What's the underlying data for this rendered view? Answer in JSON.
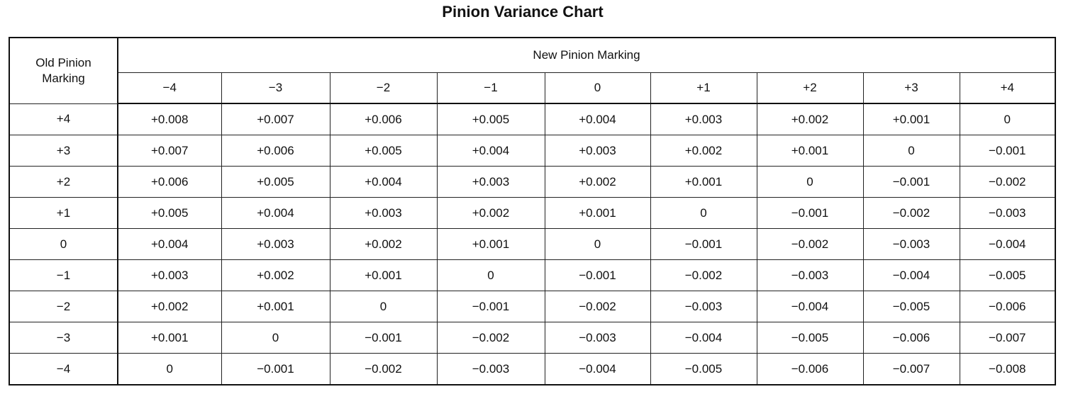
{
  "title": "Pinion Variance Chart",
  "table": {
    "header": {
      "row_label": "Old Pinion Marking",
      "group_label": "New Pinion Marking",
      "columns": [
        "−4",
        "−3",
        "−2",
        "−1",
        "0",
        "+1",
        "+2",
        "+3",
        "+4"
      ]
    },
    "rows": [
      {
        "label": "+4",
        "values": [
          "+0.008",
          "+0.007",
          "+0.006",
          "+0.005",
          "+0.004",
          "+0.003",
          "+0.002",
          "+0.001",
          "0"
        ]
      },
      {
        "label": "+3",
        "values": [
          "+0.007",
          "+0.006",
          "+0.005",
          "+0.004",
          "+0.003",
          "+0.002",
          "+0.001",
          "0",
          "−0.001"
        ]
      },
      {
        "label": "+2",
        "values": [
          "+0.006",
          "+0.005",
          "+0.004",
          "+0.003",
          "+0.002",
          "+0.001",
          "0",
          "−0.001",
          "−0.002"
        ]
      },
      {
        "label": "+1",
        "values": [
          "+0.005",
          "+0.004",
          "+0.003",
          "+0.002",
          "+0.001",
          "0",
          "−0.001",
          "−0.002",
          "−0.003"
        ]
      },
      {
        "label": "0",
        "values": [
          "+0.004",
          "+0.003",
          "+0.002",
          "+0.001",
          "0",
          "−0.001",
          "−0.002",
          "−0.003",
          "−0.004"
        ]
      },
      {
        "label": "−1",
        "values": [
          "+0.003",
          "+0.002",
          "+0.001",
          "0",
          "−0.001",
          "−0.002",
          "−0.003",
          "−0.004",
          "−0.005"
        ]
      },
      {
        "label": "−2",
        "values": [
          "+0.002",
          "+0.001",
          "0",
          "−0.001",
          "−0.002",
          "−0.003",
          "−0.004",
          "−0.005",
          "−0.006"
        ]
      },
      {
        "label": "−3",
        "values": [
          "+0.001",
          "0",
          "−0.001",
          "−0.002",
          "−0.003",
          "−0.004",
          "−0.005",
          "−0.006",
          "−0.007"
        ]
      },
      {
        "label": "−4",
        "values": [
          "0",
          "−0.001",
          "−0.002",
          "−0.003",
          "−0.004",
          "−0.005",
          "−0.006",
          "−0.007",
          "−0.008"
        ]
      }
    ]
  }
}
